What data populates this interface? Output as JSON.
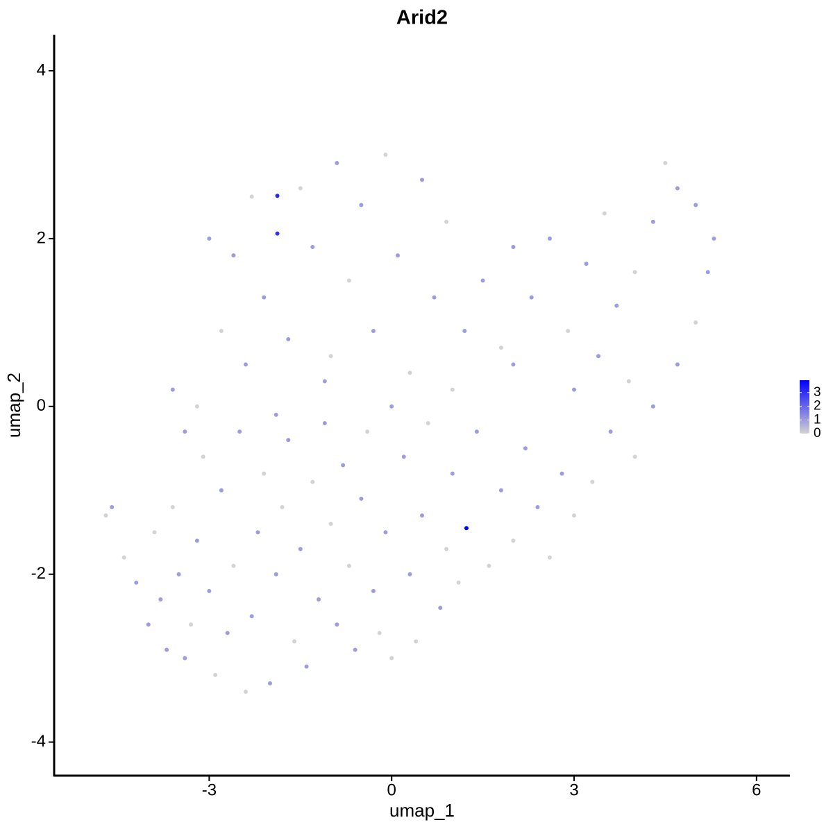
{
  "chart_data": {
    "type": "scatter",
    "title": "Arid2",
    "xlabel": "umap_1",
    "ylabel": "umap_2",
    "x": [
      -4.7,
      -4.6,
      -4.4,
      -4.2,
      -4.0,
      -3.9,
      -3.8,
      -3.7,
      -3.6,
      -3.5,
      -3.4,
      -3.3,
      -3.2,
      -3.1,
      -3.0,
      -2.9,
      -2.8,
      -2.7,
      -2.6,
      -2.5,
      -2.4,
      -2.3,
      -2.2,
      -2.1,
      -2.0,
      -1.9,
      -1.8,
      -1.7,
      -1.6,
      -1.5,
      -1.4,
      -1.3,
      -1.2,
      -1.1,
      -1.0,
      -0.9,
      -0.8,
      -0.7,
      -0.6,
      -0.5,
      -0.4,
      -0.3,
      -0.2,
      -0.1,
      0.0,
      0.2,
      0.3,
      0.4,
      0.5,
      0.6,
      0.8,
      0.9,
      1.0,
      1.1,
      1.23,
      1.4,
      1.6,
      1.8,
      2.0,
      2.2,
      2.4,
      2.6,
      2.8,
      3.0,
      3.3,
      3.6,
      3.9,
      4.3,
      4.7,
      5.0,
      5.2,
      5.3,
      5.0,
      4.7,
      4.5,
      4.3,
      4.0,
      3.7,
      3.5,
      3.2,
      2.9,
      2.6,
      2.3,
      2.0,
      1.8,
      1.5,
      1.2,
      0.9,
      0.7,
      0.5,
      0.3,
      0.1,
      -0.1,
      -0.3,
      -0.5,
      -0.7,
      -0.9,
      -1.1,
      -1.3,
      -1.5,
      -1.7,
      -1.88,
      -1.88,
      -2.1,
      -2.3,
      -2.4,
      -2.6,
      -2.8,
      -3.0,
      -3.2,
      -3.4,
      -3.6,
      -1.9,
      -1.0,
      0.0,
      1.0,
      2.0,
      3.0,
      4.0,
      3.4
    ],
    "y": [
      -1.3,
      -1.2,
      -1.8,
      -2.1,
      -2.6,
      -1.5,
      -2.3,
      -2.9,
      -1.2,
      -2.0,
      -3.0,
      -2.6,
      -1.6,
      -0.6,
      -2.2,
      -3.2,
      -1.0,
      -2.7,
      -1.9,
      -0.3,
      -3.4,
      -2.5,
      -1.5,
      -0.8,
      -3.3,
      -2.0,
      -1.2,
      -0.4,
      -2.8,
      -1.7,
      -3.1,
      -0.9,
      -2.3,
      -0.2,
      -1.4,
      -2.6,
      -0.7,
      -1.9,
      -2.9,
      -1.1,
      -0.3,
      -2.2,
      -2.7,
      -1.5,
      -3.0,
      -0.6,
      -2.0,
      -2.8,
      -1.3,
      -0.2,
      -2.4,
      -1.7,
      -0.8,
      -2.1,
      -1.45,
      -0.3,
      -1.9,
      -1.0,
      -1.6,
      -0.5,
      -1.2,
      -1.8,
      -0.8,
      -1.3,
      -0.9,
      -0.3,
      0.3,
      0.0,
      0.5,
      1.0,
      1.6,
      2.0,
      2.4,
      2.6,
      2.9,
      2.2,
      1.6,
      1.2,
      2.3,
      1.7,
      0.9,
      2.0,
      1.3,
      1.9,
      0.7,
      1.5,
      0.9,
      2.2,
      1.3,
      2.7,
      0.4,
      1.8,
      3.0,
      0.9,
      2.4,
      1.5,
      2.9,
      0.3,
      1.9,
      2.6,
      0.8,
      2.51,
      2.06,
      1.3,
      2.5,
      0.5,
      1.8,
      0.9,
      2.0,
      0.0,
      -0.3,
      0.2,
      -0.1,
      0.6,
      0.0,
      0.2,
      0.5,
      0.2,
      -0.6,
      0.6
    ],
    "values": [
      0,
      1,
      0,
      1,
      1,
      0,
      1,
      1,
      0,
      1,
      1,
      0,
      1,
      0,
      1,
      0,
      1,
      1,
      0,
      1,
      0,
      1,
      1,
      0,
      1,
      1,
      0,
      1,
      0,
      1,
      1,
      0,
      1,
      1,
      0,
      1,
      1,
      0,
      1,
      1,
      0,
      1,
      0,
      1,
      0,
      1,
      1,
      0,
      1,
      0,
      1,
      0,
      1,
      0,
      3.9,
      1,
      0,
      1,
      0,
      1,
      1,
      0,
      1,
      0,
      0,
      1,
      0,
      1,
      1,
      0,
      1,
      1,
      1,
      1,
      0,
      1,
      0,
      1,
      0,
      1,
      0,
      1,
      1,
      1,
      0,
      1,
      1,
      0,
      1,
      1,
      0,
      1,
      0,
      1,
      1,
      0,
      1,
      1,
      1,
      0,
      1,
      3.2,
      3.0,
      1,
      0,
      1,
      1,
      0,
      1,
      0,
      1,
      1,
      1,
      0,
      1,
      0,
      1,
      1,
      0,
      1
    ],
    "xlim": [
      -5.55,
      6.55
    ],
    "ylim": [
      -4.4,
      4.43
    ],
    "xticks": [
      -3,
      0,
      3,
      6
    ],
    "yticks": [
      -4,
      -2,
      0,
      2,
      4
    ],
    "colorscale": [
      "#d3d3d3",
      "#0000ff"
    ],
    "clim": [
      0,
      3.9
    ],
    "cticks": [
      0,
      1,
      2,
      3
    ]
  }
}
